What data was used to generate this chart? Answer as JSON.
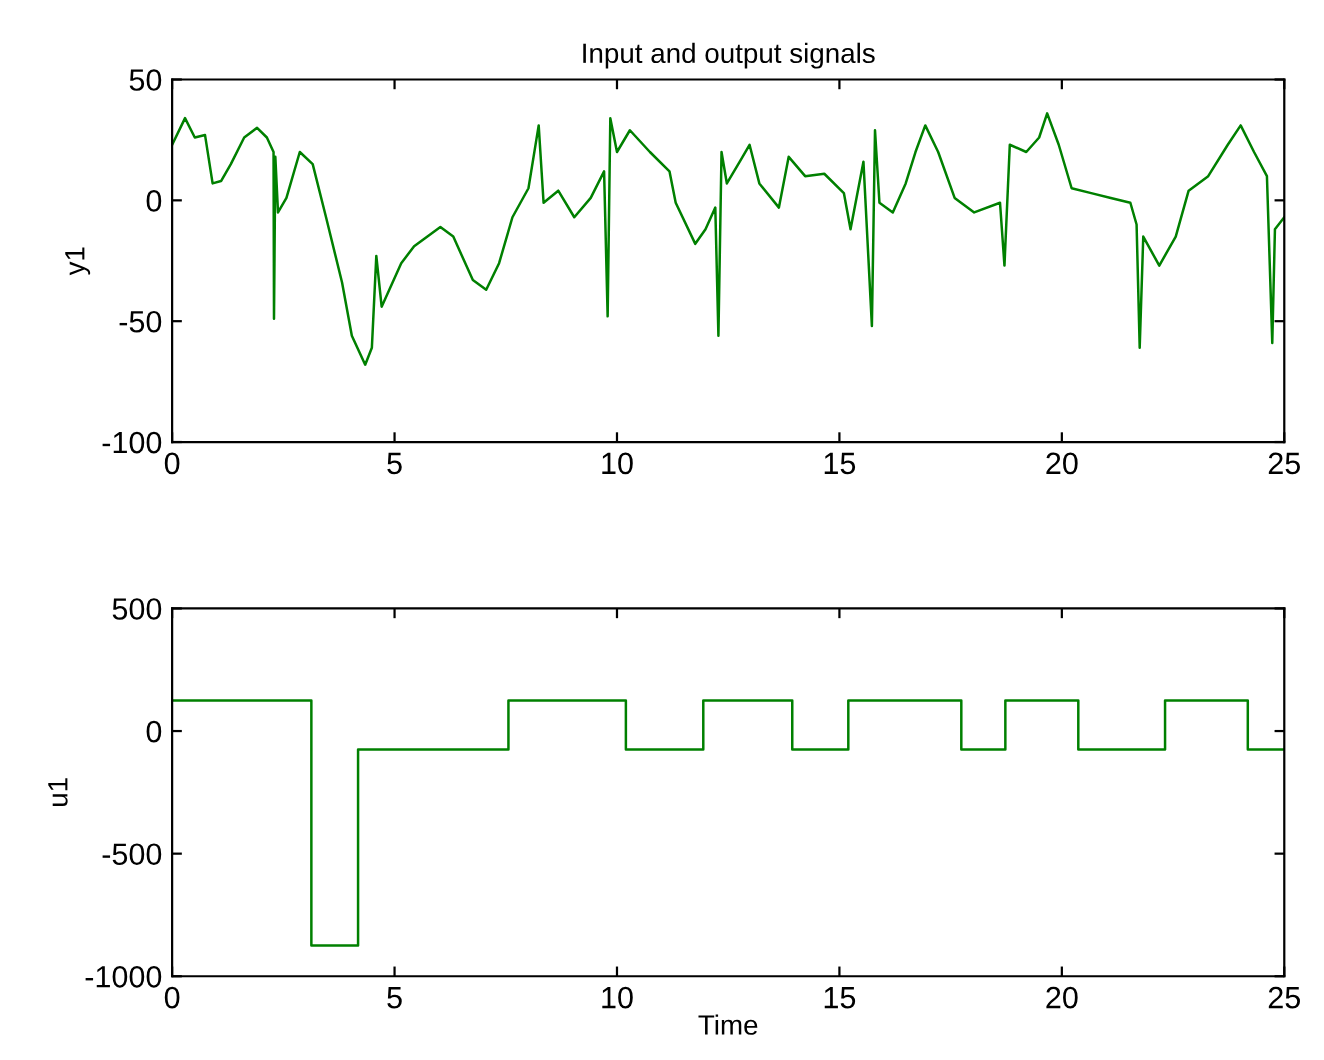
{
  "chart_data": [
    {
      "type": "line",
      "title": "Input and output signals",
      "ylabel": "y1",
      "xlim": [
        0,
        25
      ],
      "xticks": [
        0,
        5,
        10,
        15,
        20,
        25
      ],
      "ylim": [
        -100,
        50
      ],
      "yticks": [
        -100,
        -50,
        0,
        50
      ],
      "grid": false,
      "legend": false,
      "series": [
        {
          "color": "#008000",
          "x": [
            0,
            0.29,
            0.51,
            0.74,
            0.91,
            1.1,
            1.32,
            1.62,
            1.91,
            2.13,
            2.28,
            2.29,
            2.32,
            2.38,
            2.57,
            2.87,
            3.16,
            3.46,
            3.82,
            4.04,
            4.34,
            4.49,
            4.59,
            4.71,
            5.15,
            5.44,
            6.03,
            6.32,
            6.76,
            7.06,
            7.35,
            7.65,
            8.01,
            8.24,
            8.35,
            8.68,
            9.04,
            9.41,
            9.71,
            9.79,
            9.85,
            10.0,
            10.29,
            10.74,
            11.18,
            11.32,
            11.76,
            11.99,
            12.21,
            12.28,
            12.35,
            12.47,
            12.76,
            12.98,
            13.2,
            13.64,
            13.86,
            14.23,
            14.66,
            15.1,
            15.25,
            15.54,
            15.73,
            15.8,
            15.9,
            16.2,
            16.49,
            16.71,
            16.93,
            17.22,
            17.59,
            18.03,
            18.61,
            18.71,
            18.83,
            19.2,
            19.49,
            19.67,
            19.93,
            20.22,
            20.66,
            21.1,
            21.54,
            21.68,
            21.75,
            21.83,
            22.19,
            22.56,
            22.85,
            23.29,
            23.73,
            24.02,
            24.32,
            24.61,
            24.73,
            24.79,
            25
          ],
          "values": [
            23,
            34,
            26,
            27,
            7,
            8,
            15,
            26,
            30,
            26,
            20,
            -49,
            18,
            -5,
            1,
            20,
            15,
            -7,
            -34,
            -56,
            -68,
            -61,
            -23,
            -44,
            -26,
            -19,
            -11,
            -15,
            -33,
            -37,
            -26,
            -7,
            5,
            31,
            -1,
            4,
            -7,
            1,
            12,
            -48,
            34,
            20,
            29,
            20,
            12,
            -1,
            -18,
            -12,
            -3,
            -56,
            20,
            7,
            16,
            23,
            7,
            -3,
            18,
            10,
            11,
            3,
            -12,
            16,
            -52,
            29,
            -1,
            -5,
            7,
            20,
            31,
            20,
            1,
            -5,
            -1,
            -27,
            23,
            20,
            26,
            36,
            23,
            5,
            3,
            1,
            -1,
            -10,
            -61,
            -15,
            -27,
            -15,
            4,
            10,
            23,
            31,
            20,
            10,
            -59,
            -12,
            -7
          ]
        }
      ]
    },
    {
      "type": "step",
      "xlabel": "Time",
      "ylabel": "u1",
      "xlim": [
        0,
        25
      ],
      "xticks": [
        0,
        5,
        10,
        15,
        20,
        25
      ],
      "ylim": [
        -1000,
        500
      ],
      "yticks": [
        -1000,
        -500,
        0,
        500
      ],
      "grid": false,
      "legend": false,
      "series": [
        {
          "color": "#008000",
          "x": [
            0,
            3.13,
            4.18,
            7.56,
            10.2,
            11.94,
            13.94,
            15.2,
            17.74,
            18.73,
            20.37,
            22.32,
            24.18,
            25
          ],
          "values": [
            125,
            -875,
            -75,
            125,
            -75,
            125,
            -75,
            125,
            -75,
            125,
            -75,
            125,
            -75,
            -75
          ]
        }
      ]
    }
  ]
}
